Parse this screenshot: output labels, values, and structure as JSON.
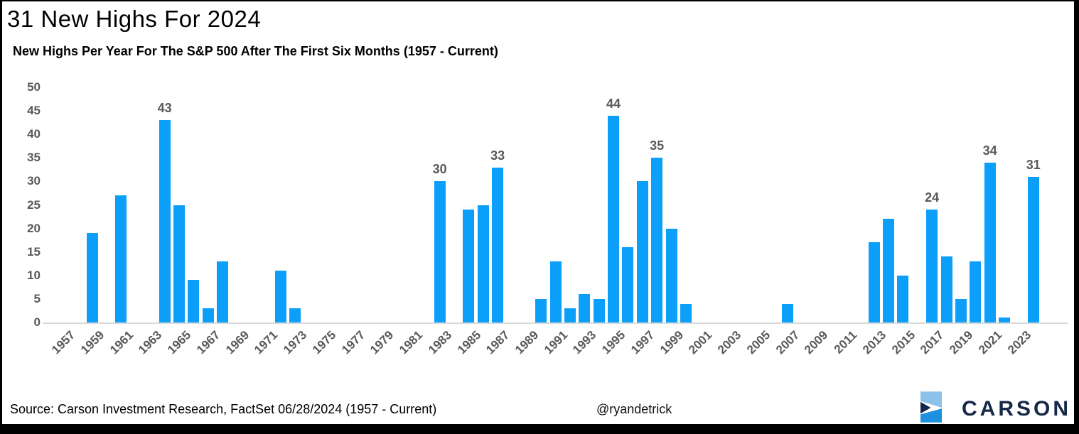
{
  "header": {
    "title": "31 New Highs For 2024",
    "subtitle": "New Highs Per Year For The S&P 500 After The First Six Months (1957 - Current)"
  },
  "footer": {
    "source": "Source: Carson Investment Research, FactSet 06/28/2024 (1957 - Current)",
    "handle": "@ryandetrick",
    "brand": "CARSON"
  },
  "colors": {
    "bar": "#0c9ff9",
    "axis_text": "#595959",
    "data_label_text": "#595959",
    "axis_line": "#d9d9d9",
    "frame": "#000000",
    "brand_navy": "#152948",
    "logo_light_blue": "#8cc1e9",
    "logo_bright_blue": "#1e90dd",
    "logo_dark_navy": "#16284a"
  },
  "icons": {
    "logo_mark": "carson-chevron-logo-icon"
  },
  "chart_data": {
    "type": "bar",
    "title": "New Highs Per Year For The S&P 500 After The First Six Months (1957 - Current)",
    "xlabel": "",
    "ylabel": "",
    "ylim": [
      0,
      50
    ],
    "y_ticks": [
      0,
      5,
      10,
      15,
      20,
      25,
      30,
      35,
      40,
      45,
      50
    ],
    "grid": false,
    "legend": "none",
    "x": [
      1957,
      1958,
      1959,
      1960,
      1961,
      1962,
      1963,
      1964,
      1965,
      1966,
      1967,
      1968,
      1969,
      1970,
      1971,
      1972,
      1973,
      1974,
      1975,
      1976,
      1977,
      1978,
      1979,
      1980,
      1981,
      1982,
      1983,
      1984,
      1985,
      1986,
      1987,
      1988,
      1989,
      1990,
      1991,
      1992,
      1993,
      1994,
      1995,
      1996,
      1997,
      1998,
      1999,
      2000,
      2001,
      2002,
      2003,
      2004,
      2005,
      2006,
      2007,
      2008,
      2009,
      2010,
      2011,
      2012,
      2013,
      2014,
      2015,
      2016,
      2017,
      2018,
      2019,
      2020,
      2021,
      2022,
      2023,
      2024
    ],
    "values": [
      0,
      0,
      19,
      0,
      27,
      0,
      0,
      43,
      25,
      9,
      3,
      13,
      0,
      0,
      0,
      11,
      3,
      0,
      0,
      0,
      0,
      0,
      0,
      0,
      0,
      0,
      30,
      0,
      24,
      25,
      33,
      0,
      0,
      5,
      13,
      3,
      6,
      5,
      44,
      16,
      30,
      35,
      20,
      4,
      0,
      0,
      0,
      0,
      0,
      0,
      4,
      0,
      0,
      0,
      0,
      0,
      17,
      22,
      10,
      0,
      24,
      14,
      5,
      13,
      34,
      1,
      0,
      31
    ],
    "annotated_years": [
      1964,
      1983,
      1987,
      1995,
      1998,
      2017,
      2021,
      2024
    ],
    "x_tick_labels": [
      "1957",
      "1959",
      "1961",
      "1963",
      "1965",
      "1967",
      "1969",
      "1971",
      "1973",
      "1975",
      "1977",
      "1979",
      "1981",
      "1983",
      "1985",
      "1987",
      "1989",
      "1991",
      "1993",
      "1995",
      "1997",
      "1999",
      "2001",
      "2003",
      "2005",
      "2007",
      "2009",
      "2011",
      "2013",
      "2015",
      "2017",
      "2019",
      "2021",
      "2023"
    ]
  }
}
